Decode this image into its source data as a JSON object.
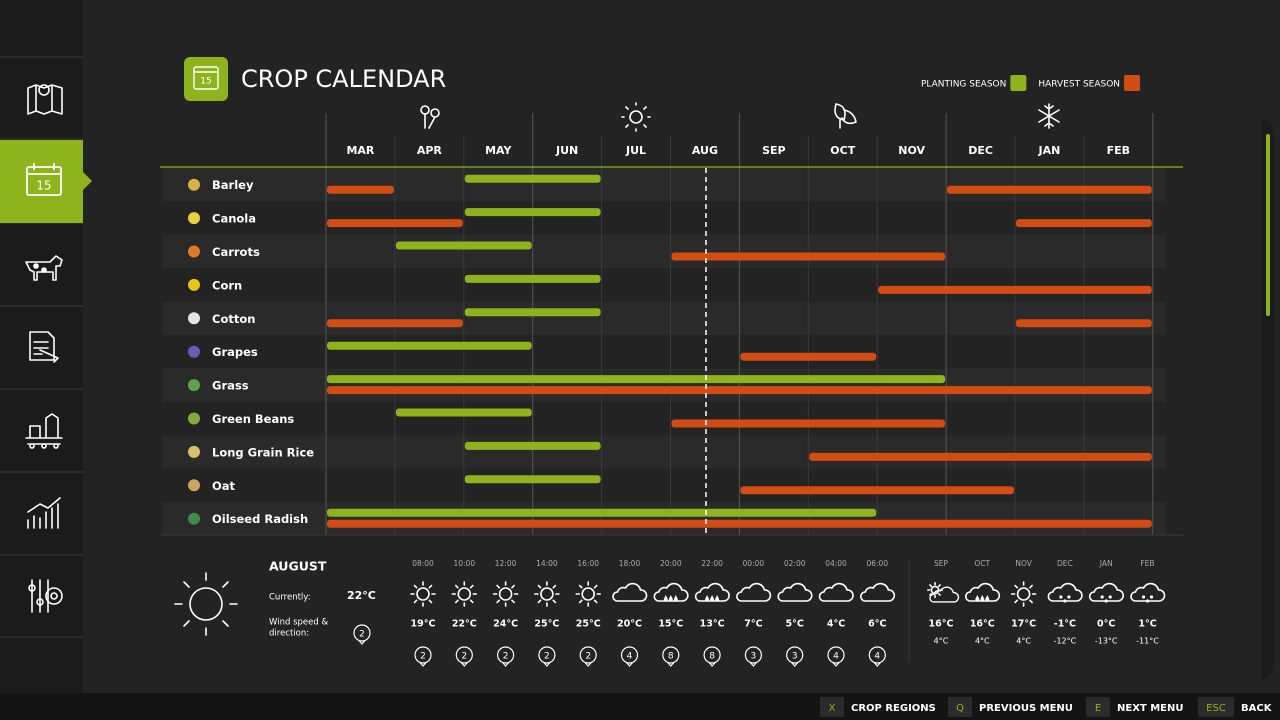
{
  "header": {
    "title": "CROP CALENDAR",
    "icon_text": "15"
  },
  "legend": [
    {
      "label": "PLANTING SEASON",
      "color": "#8db41d"
    },
    {
      "label": "HARVEST SEASON",
      "color": "#d24c13"
    }
  ],
  "months": [
    "MAR",
    "APR",
    "MAY",
    "JUN",
    "JUL",
    "AUG",
    "SEP",
    "OCT",
    "NOV",
    "DEC",
    "JAN",
    "FEB"
  ],
  "crops": [
    {
      "name": "Barley",
      "color": "#d8b04a",
      "planting": [
        [
          "MAY",
          "JUN"
        ]
      ],
      "harvest": [
        [
          "MAR",
          "MAR"
        ],
        [
          "DEC",
          "FEB"
        ]
      ]
    },
    {
      "name": "Canola",
      "color": "#e8d23a",
      "planting": [
        [
          "MAY",
          "JUN"
        ]
      ],
      "harvest": [
        [
          "MAR",
          "APR"
        ],
        [
          "JAN",
          "FEB"
        ]
      ]
    },
    {
      "name": "Carrots",
      "color": "#e07a24",
      "planting": [
        [
          "APR",
          "MAY"
        ]
      ],
      "harvest": [
        [
          "AUG",
          "NOV"
        ]
      ]
    },
    {
      "name": "Corn",
      "color": "#e9c21c",
      "planting": [
        [
          "MAY",
          "JUN"
        ]
      ],
      "harvest": [
        [
          "NOV",
          "FEB"
        ]
      ]
    },
    {
      "name": "Cotton",
      "color": "#e8e4dc",
      "planting": [
        [
          "MAY",
          "JUN"
        ]
      ],
      "harvest": [
        [
          "MAR",
          "APR"
        ],
        [
          "JAN",
          "FEB"
        ]
      ]
    },
    {
      "name": "Grapes",
      "color": "#6a5bb5",
      "planting": [
        [
          "MAR",
          "MAY"
        ]
      ],
      "harvest": [
        [
          "SEP",
          "OCT"
        ]
      ]
    },
    {
      "name": "Grass",
      "color": "#5ea14a",
      "planting": [
        [
          "MAR",
          "NOV"
        ]
      ],
      "harvest": [
        [
          "MAR",
          "FEB"
        ]
      ]
    },
    {
      "name": "Green Beans",
      "color": "#7fae3a",
      "planting": [
        [
          "APR",
          "MAY"
        ]
      ],
      "harvest": [
        [
          "AUG",
          "NOV"
        ]
      ]
    },
    {
      "name": "Long Grain Rice",
      "color": "#d9c16a",
      "planting": [
        [
          "MAY",
          "JUN"
        ]
      ],
      "harvest": [
        [
          "OCT",
          "FEB"
        ]
      ]
    },
    {
      "name": "Oat",
      "color": "#c9a560",
      "planting": [
        [
          "MAY",
          "JUN"
        ]
      ],
      "harvest": [
        [
          "SEP",
          "DEC"
        ]
      ]
    },
    {
      "name": "Oilseed Radish",
      "color": "#3d8a4a",
      "planting": [
        [
          "MAR",
          "OCT"
        ]
      ],
      "harvest": [
        [
          "MAR",
          "FEB"
        ]
      ]
    }
  ],
  "weather": {
    "month": "AUGUST",
    "current_label": "Currently:",
    "current_temp": "22°C",
    "wind_label": [
      "Wind speed &",
      "direction:"
    ],
    "wind": 2,
    "hourly": [
      {
        "time": "08:00",
        "icon": "sun",
        "temp": "19°C",
        "wind": 2
      },
      {
        "time": "10:00",
        "icon": "sun",
        "temp": "22°C",
        "wind": 2
      },
      {
        "time": "12:00",
        "icon": "sun",
        "temp": "24°C",
        "wind": 2
      },
      {
        "time": "14:00",
        "icon": "sun",
        "temp": "25°C",
        "wind": 2
      },
      {
        "time": "16:00",
        "icon": "sun",
        "temp": "25°C",
        "wind": 2
      },
      {
        "time": "18:00",
        "icon": "cloud",
        "temp": "20°C",
        "wind": 4
      },
      {
        "time": "20:00",
        "icon": "rain",
        "temp": "15°C",
        "wind": 8
      },
      {
        "time": "22:00",
        "icon": "rain",
        "temp": "13°C",
        "wind": 8
      },
      {
        "time": "00:00",
        "icon": "cloud",
        "temp": "7°C",
        "wind": 3
      },
      {
        "time": "02:00",
        "icon": "cloud",
        "temp": "5°C",
        "wind": 3
      },
      {
        "time": "04:00",
        "icon": "cloud",
        "temp": "4°C",
        "wind": 4
      },
      {
        "time": "06:00",
        "icon": "cloud",
        "temp": "6°C",
        "wind": 4
      }
    ],
    "daily": [
      {
        "month": "SEP",
        "icon": "partly",
        "high": "16°C",
        "low": "4°C"
      },
      {
        "month": "OCT",
        "icon": "rain",
        "high": "16°C",
        "low": "4°C"
      },
      {
        "month": "NOV",
        "icon": "sun",
        "high": "17°C",
        "low": "4°C"
      },
      {
        "month": "DEC",
        "icon": "snow",
        "high": "-1°C",
        "low": "-12°C"
      },
      {
        "month": "JAN",
        "icon": "snow",
        "high": "0°C",
        "low": "-13°C"
      },
      {
        "month": "FEB",
        "icon": "snow",
        "high": "1°C",
        "low": "-11°C"
      }
    ]
  },
  "footer": [
    {
      "key": "X",
      "label": "CROP REGIONS"
    },
    {
      "key": "Q",
      "label": "PREVIOUS MENU"
    },
    {
      "key": "E",
      "label": "NEXT MENU"
    },
    {
      "key": "ESC",
      "label": "BACK"
    }
  ]
}
